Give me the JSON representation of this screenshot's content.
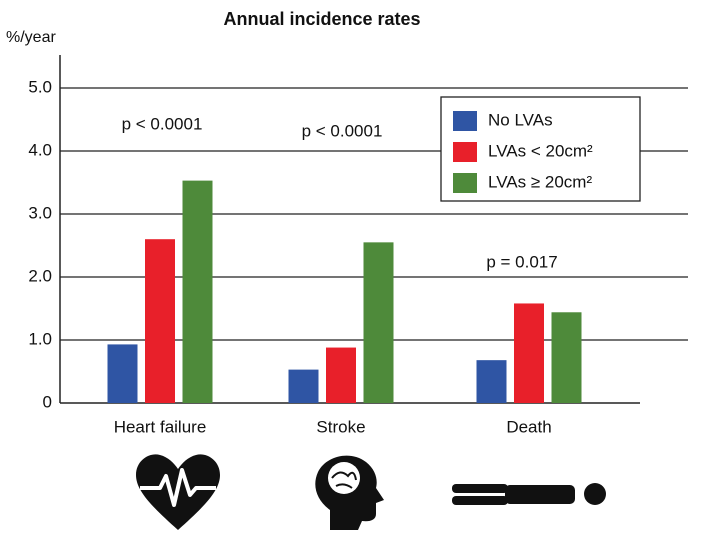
{
  "chart_data": {
    "type": "bar",
    "title": "Annual incidence rates",
    "y_label": "%/year",
    "categories": [
      "Heart failure",
      "Stroke",
      "Death"
    ],
    "series": [
      {
        "name": "No LVAs",
        "color": "#2f55a4",
        "values": [
          0.93,
          0.53,
          0.68
        ]
      },
      {
        "name": "LVAs < 20cm²",
        "color": "#e8202a",
        "values": [
          2.6,
          0.88,
          1.58
        ]
      },
      {
        "name": "LVAs ≥ 20cm²",
        "color": "#4e8a3a",
        "values": [
          3.53,
          2.55,
          1.44
        ]
      }
    ],
    "annotations": [
      "p < 0.0001",
      "p < 0.0001",
      "p = 0.017"
    ],
    "ylim": [
      0,
      5
    ],
    "yticks": [
      0,
      {
        "value": 1,
        "label": "1.0"
      },
      {
        "value": 2,
        "label": "2.0"
      },
      {
        "value": 3,
        "label": "3.0"
      },
      {
        "value": 4,
        "label": "4.0"
      },
      {
        "value": 5,
        "label": "5.0"
      }
    ],
    "grid": true,
    "legend": "upper right"
  }
}
